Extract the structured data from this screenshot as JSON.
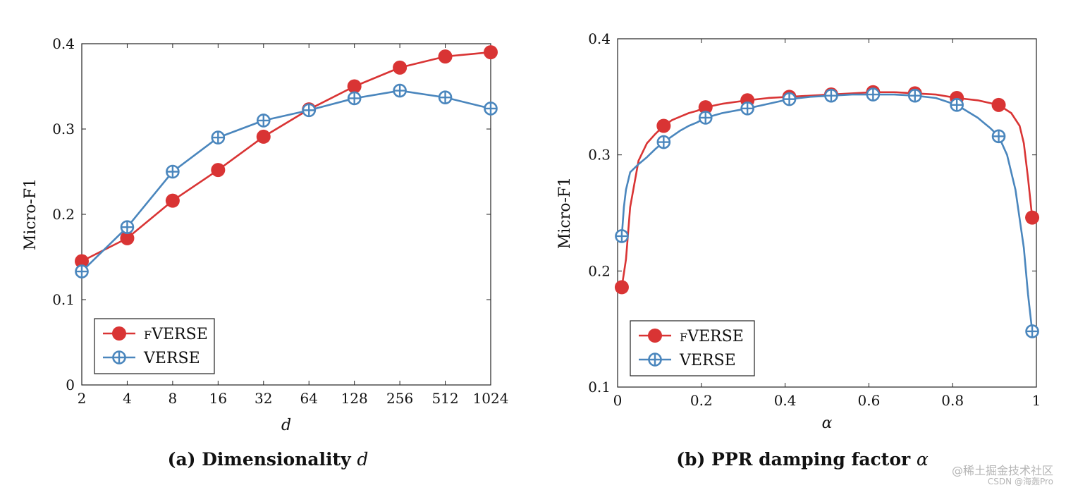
{
  "colors": {
    "fverse": "#d93434",
    "verse": "#4a86bd",
    "axis": "#222222"
  },
  "chart_data": [
    {
      "type": "line",
      "id": "a",
      "caption_prefix": "(a) Dimensionality",
      "caption_symbol": "d",
      "xlabel": "d",
      "ylabel": "Micro-F1",
      "categories": [
        "2",
        "4",
        "8",
        "16",
        "32",
        "64",
        "128",
        "256",
        "512",
        "1024"
      ],
      "yticks": [
        0,
        0.1,
        0.2,
        0.3,
        0.4
      ],
      "ytick_labels": [
        "0",
        "0.1",
        "0.2",
        "0.3",
        "0.4"
      ],
      "ylim": [
        0,
        0.4
      ],
      "legend": "bottom-left",
      "series": [
        {
          "name": "fVERSE",
          "label_small": "F",
          "label_rest": "VERSE",
          "marker": "circle",
          "values": [
            0.145,
            0.172,
            0.216,
            0.252,
            0.291,
            0.323,
            0.35,
            0.372,
            0.385,
            0.39
          ]
        },
        {
          "name": "VERSE",
          "label_rest": "VERSE",
          "marker": "oplus",
          "values": [
            0.133,
            0.185,
            0.25,
            0.29,
            0.31,
            0.322,
            0.336,
            0.345,
            0.337,
            0.324
          ]
        }
      ]
    },
    {
      "type": "line",
      "id": "b",
      "caption_prefix": "(b) PPR damping factor",
      "caption_symbol": "α",
      "xlabel": "α",
      "ylabel": "Micro-F1",
      "xticks": [
        0,
        0.2,
        0.4,
        0.6,
        0.8,
        1
      ],
      "xtick_labels": [
        "0",
        "0.2",
        "0.4",
        "0.6",
        "0.8",
        "1"
      ],
      "xlim": [
        0,
        1
      ],
      "yticks": [
        0.1,
        0.2,
        0.3,
        0.4
      ],
      "ytick_labels": [
        "0.1",
        "0.2",
        "0.3",
        "0.4"
      ],
      "ylim": [
        0.1,
        0.4
      ],
      "legend": "bottom-left",
      "series": [
        {
          "name": "fVERSE",
          "label_small": "F",
          "label_rest": "VERSE",
          "marker": "circle",
          "x": [
            0.01,
            0.02,
            0.03,
            0.05,
            0.07,
            0.09,
            0.11,
            0.13,
            0.15,
            0.17,
            0.19,
            0.21,
            0.25,
            0.31,
            0.36,
            0.41,
            0.46,
            0.51,
            0.56,
            0.61,
            0.66,
            0.71,
            0.76,
            0.81,
            0.86,
            0.91,
            0.94,
            0.96,
            0.97,
            0.98,
            0.99
          ],
          "y": [
            0.186,
            0.21,
            0.255,
            0.295,
            0.31,
            0.318,
            0.325,
            0.33,
            0.333,
            0.336,
            0.338,
            0.341,
            0.344,
            0.347,
            0.349,
            0.35,
            0.351,
            0.352,
            0.353,
            0.354,
            0.354,
            0.353,
            0.352,
            0.349,
            0.347,
            0.343,
            0.336,
            0.325,
            0.31,
            0.28,
            0.246
          ],
          "marker_x": [
            0.01,
            0.11,
            0.21,
            0.31,
            0.41,
            0.51,
            0.61,
            0.71,
            0.81,
            0.91,
            0.99
          ],
          "marker_y": [
            0.186,
            0.325,
            0.341,
            0.347,
            0.35,
            0.352,
            0.354,
            0.353,
            0.349,
            0.343,
            0.246
          ]
        },
        {
          "name": "VERSE",
          "label_rest": "VERSE",
          "marker": "oplus",
          "x": [
            0.01,
            0.015,
            0.02,
            0.03,
            0.05,
            0.07,
            0.09,
            0.11,
            0.13,
            0.15,
            0.17,
            0.19,
            0.21,
            0.25,
            0.31,
            0.36,
            0.41,
            0.46,
            0.51,
            0.56,
            0.61,
            0.66,
            0.71,
            0.76,
            0.81,
            0.86,
            0.89,
            0.91,
            0.93,
            0.95,
            0.97,
            0.98,
            0.99
          ],
          "y": [
            0.23,
            0.255,
            0.27,
            0.285,
            0.292,
            0.298,
            0.305,
            0.311,
            0.316,
            0.321,
            0.325,
            0.328,
            0.332,
            0.336,
            0.34,
            0.344,
            0.348,
            0.35,
            0.351,
            0.352,
            0.352,
            0.352,
            0.351,
            0.349,
            0.343,
            0.332,
            0.323,
            0.316,
            0.3,
            0.27,
            0.22,
            0.18,
            0.148
          ],
          "marker_x": [
            0.01,
            0.11,
            0.21,
            0.31,
            0.41,
            0.51,
            0.61,
            0.71,
            0.81,
            0.91,
            0.99
          ],
          "marker_y": [
            0.23,
            0.311,
            0.332,
            0.34,
            0.348,
            0.351,
            0.352,
            0.351,
            0.343,
            0.316,
            0.148
          ]
        }
      ]
    }
  ],
  "watermark": {
    "line1": "@稀土掘金技术社区",
    "line2": "CSDN @海轰Pro"
  }
}
